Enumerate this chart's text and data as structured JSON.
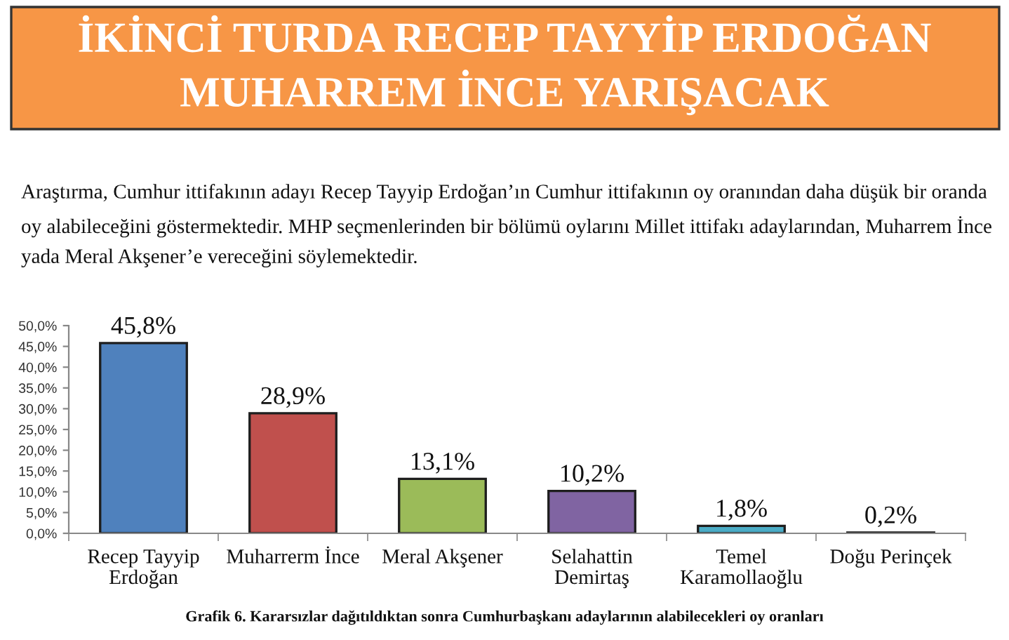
{
  "chart_data": {
    "type": "bar",
    "title": "İKİNCİ TURDA RECEP TAYYİP ERDOĞAN\nMUHARREM İNCE YARIŞACAK",
    "subtitle": "Araştırma, Cumhur ittifakının adayı Recep Tayyip Erdoğan’ın Cumhur ittifakının oy oranından daha düşük bir oranda oy alabileceğini göstermektedir. MHP seçmenlerinden bir bölümü oylarını Millet ittifakı adaylarından, Muharrem İnce yada Meral Akşener’e vereceğini söylemektedir.",
    "annotations": [
      "Grafik 6. Kararsızlar dağıtıldıktan sonra Cumhurbaşkanı adaylarının alabilecekleri oy oranları"
    ],
    "categories": [
      "Recep Tayyip\nErdoğan",
      "Muharrerm İnce",
      "Meral Akşener",
      "Selahattin\nDemirtaş",
      "Temel\nKaramollaoğlu",
      "Doğu Perinçek"
    ],
    "values": [
      45.8,
      28.9,
      13.1,
      10.2,
      1.8,
      0.2
    ],
    "colors": [
      "#4f81bd",
      "#c0504d",
      "#9bbb59",
      "#8064a2",
      "#4bacc6",
      "#3c3c3c"
    ],
    "value_labels": [
      "45,8%",
      "28,9%",
      "13,1%",
      "10,2%",
      "1,8%",
      "0,2%"
    ],
    "ylim": [
      0,
      50
    ],
    "yticks": [
      {
        "value": 0,
        "label": "0,0%"
      },
      {
        "value": 5,
        "label": "5,0%"
      },
      {
        "value": 10,
        "label": "10,0%"
      },
      {
        "value": 15,
        "label": "15,0%"
      },
      {
        "value": 20,
        "label": "20,0%"
      },
      {
        "value": 25,
        "label": "25,0%"
      },
      {
        "value": 30,
        "label": "30,0%"
      },
      {
        "value": 35,
        "label": "35,0%"
      },
      {
        "value": 40,
        "label": "40,0%"
      },
      {
        "value": 45,
        "label": "45,0%"
      },
      {
        "value": 50,
        "label": "50,0%"
      }
    ]
  }
}
